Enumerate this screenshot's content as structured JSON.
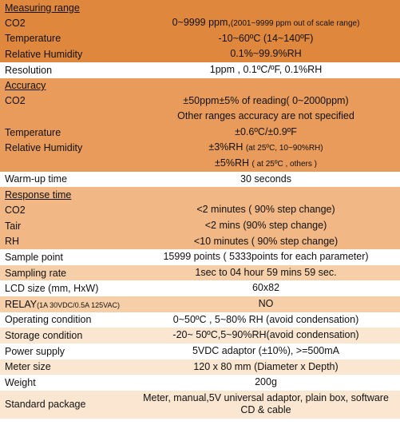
{
  "colors": {
    "shade_dark": "#e0873e",
    "shade_med": "#e99b5b",
    "shade_light": "#f1b784",
    "shade_lighter": "#f6cfa8",
    "shade_pale": "#fbe7d1",
    "shade_white": "#ffffff"
  },
  "heads": {
    "measuring_range": "Measuring range",
    "accuracy": "Accuracy",
    "response_time": "Response time"
  },
  "labels": {
    "co2": "CO2",
    "temperature": "Temperature",
    "rh": "Relative Humidity",
    "resolution": "Resolution",
    "warmup": "Warm-up time",
    "tair": "Tair",
    "rh_short": "RH",
    "sample_point": "Sample point",
    "sampling_rate": "Sampling rate",
    "lcd": "LCD size (mm, HxW)",
    "relay": "RELAY",
    "relay_sub": "(1A 30VDC/0.5A 125VAC)",
    "op_cond": "Operating condition",
    "storage": "Storage condition",
    "power": "Power supply",
    "meter": "Meter size",
    "weight": "Weight",
    "std_pkg": "Standard package"
  },
  "values": {
    "mr_co2_a": "0~9999 ppm,",
    "mr_co2_b": "(2001~9999 ppm out of scale range)",
    "mr_temp": "-10~60ºC (14~140ºF)",
    "mr_rh": "0.1%~99.9%RH",
    "resolution": "1ppm  , 0.1ºC/ºF, 0.1%RH",
    "acc_co2_1": "±50ppm±5% of reading( 0~2000ppm)",
    "acc_co2_2": "Other ranges accuracy are not specified",
    "acc_temp": "±0.6ºC/±0.9ºF",
    "acc_rh_1": "±3%RH ",
    "acc_rh_1_sub": "(at 25ºC, 10~90%RH)",
    "acc_rh_2": "±5%RH ",
    "acc_rh_2_sub": "( at 25ºC , others )",
    "warmup": "30 seconds",
    "rt_co2": "<2 minutes ( 90% step change)",
    "rt_tair": "<2 mins  (90% step change)",
    "rt_rh": "<10 minutes ( 90% step change)",
    "sample_point": "15999 points ( 5333points for each parameter)",
    "sampling_rate": "1sec  to 04 hour 59 mins 59 sec.",
    "lcd": "60x82",
    "relay": "NO",
    "op_cond": "0~50ºC , 5~80% RH (avoid condensation)",
    "storage": "-20~ 50ºC,5~90%RH(avoid condensation)",
    "power": "5VDC adaptor (±10%), >=500mA",
    "meter": "120  x 80 mm (Diameter x Depth)",
    "weight": "200g",
    "std_pkg": "Meter, manual,5V universal adaptor, plain box, software CD & cable"
  }
}
